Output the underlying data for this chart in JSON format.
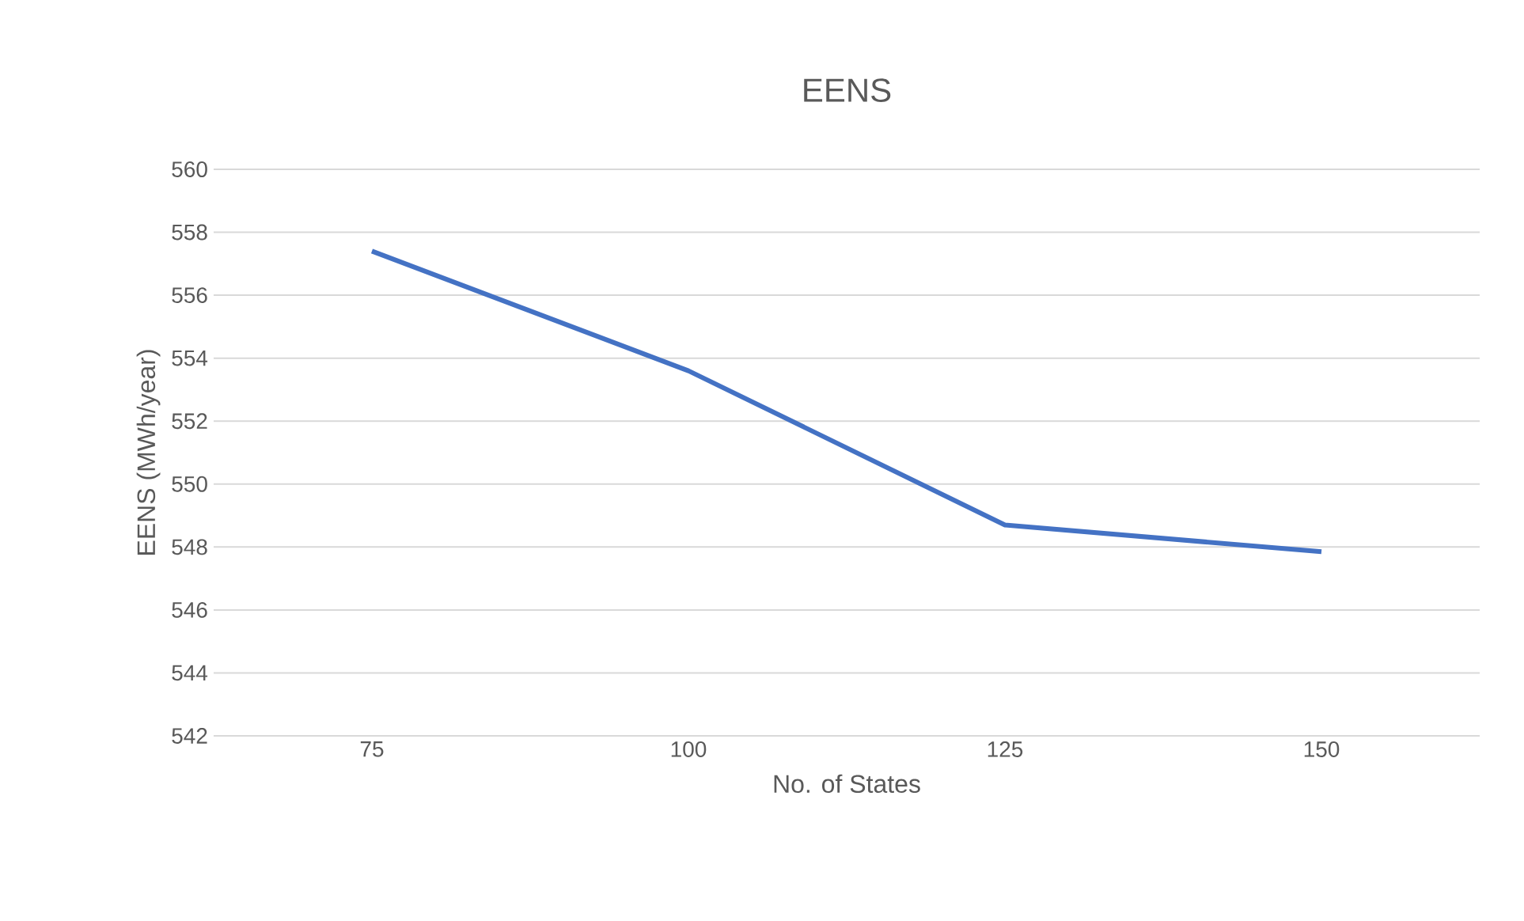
{
  "chart_data": {
    "type": "line",
    "title": "EENS",
    "xlabel": "No. of States",
    "ylabel": "EENS (MWh/year)",
    "categories": [
      "75",
      "100",
      "125",
      "150"
    ],
    "series": [
      {
        "color": "#4472c4",
        "values": [
          557.4,
          553.6,
          548.7,
          547.85
        ]
      }
    ],
    "ylim": [
      542,
      560
    ],
    "yticks": [
      542,
      544,
      546,
      548,
      550,
      552,
      554,
      556,
      558,
      560
    ],
    "grid": "y",
    "marker": "none",
    "line_style": "solid"
  }
}
